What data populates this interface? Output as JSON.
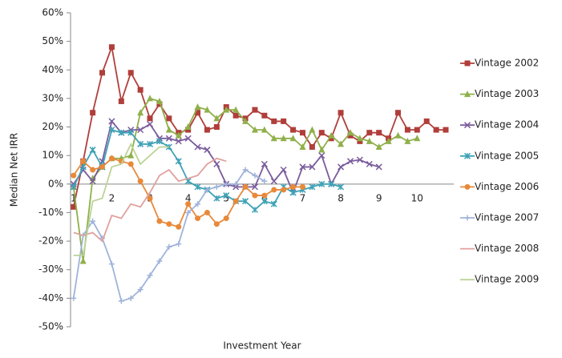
{
  "chart_data": {
    "type": "line",
    "ylabel": "Median Net IRR",
    "xlabel": "Investment Year",
    "x": [
      1,
      1.25,
      1.5,
      1.75,
      2,
      2.25,
      2.5,
      2.75,
      3,
      3.25,
      3.5,
      3.75,
      4,
      4.25,
      4.5,
      4.75,
      5,
      5.25,
      5.5,
      5.75,
      6,
      6.25,
      6.5,
      6.75,
      7,
      7.25,
      7.5,
      7.75,
      8,
      8.25,
      8.5,
      8.75,
      9,
      9.25,
      9.5,
      9.75,
      10,
      10.25,
      10.5,
      10.75
    ],
    "xlim": [
      0.92,
      10.96
    ],
    "xticks": [
      1,
      2,
      3,
      4,
      5,
      6,
      7,
      8,
      9,
      10
    ],
    "ylim": [
      -50,
      60
    ],
    "yticks": [
      {
        "value": -50,
        "label": "-50%"
      },
      {
        "value": -40,
        "label": "-40%"
      },
      {
        "value": -30,
        "label": "-30%"
      },
      {
        "value": -20,
        "label": "-20%"
      },
      {
        "value": -10,
        "label": "-10%"
      },
      {
        "value": 0,
        "label": "0%"
      },
      {
        "value": 10,
        "label": "10%"
      },
      {
        "value": 20,
        "label": "20%"
      },
      {
        "value": 30,
        "label": "30%"
      },
      {
        "value": 40,
        "label": "40%"
      },
      {
        "value": 50,
        "label": "50%"
      },
      {
        "value": 60,
        "label": "60%"
      }
    ],
    "legend": "right",
    "series": [
      {
        "name": "Vintage 2002",
        "color": "#b03e3a",
        "marker": "square",
        "values": [
          -8,
          8,
          25,
          39,
          48,
          29,
          39,
          33,
          23,
          28,
          23,
          18,
          19,
          25,
          19,
          20,
          27,
          24,
          23,
          26,
          24,
          22,
          22,
          19,
          18,
          13,
          18,
          16,
          25,
          17,
          15,
          18,
          18,
          16,
          25,
          19,
          19,
          22,
          19,
          19
        ]
      },
      {
        "name": "Vintage 2003",
        "color": "#8fb04a",
        "marker": "triangle",
        "values": [
          -1,
          -27,
          2,
          6,
          9,
          9,
          10,
          25,
          30,
          29,
          19,
          17,
          20,
          27,
          26,
          23,
          26,
          26,
          22,
          19,
          19,
          16,
          16,
          16,
          13,
          19,
          12,
          17,
          14,
          18,
          16,
          15,
          13,
          15,
          17,
          15,
          16,
          null,
          null,
          null
        ]
      },
      {
        "name": "Vintage 2004",
        "color": "#7a5c9c",
        "marker": "cross",
        "values": [
          0,
          5,
          1,
          8,
          22,
          18,
          19,
          19,
          21,
          16,
          16,
          15,
          16,
          13,
          12,
          7,
          0,
          -1,
          -1,
          -1,
          7,
          1,
          5,
          -3,
          6,
          6,
          10,
          0,
          6,
          8,
          8.5,
          7,
          6,
          null,
          null,
          null,
          null,
          null,
          null,
          null
        ]
      },
      {
        "name": "Vintage 2005",
        "color": "#3fa2b6",
        "marker": "star",
        "values": [
          -1,
          6,
          12,
          6,
          19,
          18,
          18,
          14,
          14,
          15,
          13,
          8,
          1,
          -1,
          -2,
          -5,
          -4,
          -6,
          -6,
          -9,
          -6,
          -7,
          -1,
          -3,
          -2,
          -1,
          0,
          0,
          -1,
          null,
          null,
          null,
          null,
          null,
          null,
          null,
          null,
          null,
          null,
          null
        ]
      },
      {
        "name": "Vintage 2006",
        "color": "#e8893a",
        "marker": "circle",
        "values": [
          3,
          8,
          5,
          6,
          9,
          8,
          7,
          1,
          -5,
          -13,
          -14,
          -15,
          -7,
          -12,
          -10,
          -14,
          -12,
          -6,
          -1,
          -4,
          -4,
          -2,
          -2,
          -1,
          -1,
          null,
          null,
          null,
          null,
          null,
          null,
          null,
          null,
          null,
          null,
          null,
          null,
          null,
          null,
          null
        ]
      },
      {
        "name": "Vintage 2007",
        "color": "#9fb3da",
        "marker": "plus",
        "values": [
          -40,
          -18,
          -13,
          -19,
          -28,
          -41,
          -40,
          -37,
          -32,
          -27,
          -22,
          -21,
          -10,
          -7,
          -2,
          -1,
          0,
          0,
          5,
          3,
          1,
          null,
          null,
          null,
          null,
          null,
          null,
          null,
          null,
          null,
          null,
          null,
          null,
          null,
          null,
          null,
          null,
          null,
          null,
          null
        ]
      },
      {
        "name": "Vintage 2008",
        "color": "#e0a09e",
        "marker": "none",
        "values": [
          -17,
          -18,
          -17,
          -20,
          -11,
          -12,
          -7,
          -8,
          -3,
          3,
          5,
          1,
          2,
          3,
          7,
          9,
          8,
          null,
          null,
          null,
          null,
          null,
          null,
          null,
          null,
          null,
          null,
          null,
          null,
          null,
          null,
          null,
          null,
          null,
          null,
          null,
          null,
          null,
          null,
          null
        ]
      },
      {
        "name": "Vintage 2009",
        "color": "#bcd396",
        "marker": "none",
        "values": [
          -25,
          -25,
          -6,
          -5,
          6,
          7,
          14,
          7,
          10,
          13,
          13,
          null,
          null,
          null,
          null,
          null,
          null,
          null,
          null,
          null,
          null,
          null,
          null,
          null,
          null,
          null,
          null,
          null,
          null,
          null,
          null,
          null,
          null,
          null,
          null,
          null,
          null,
          null,
          null,
          null
        ]
      }
    ]
  }
}
